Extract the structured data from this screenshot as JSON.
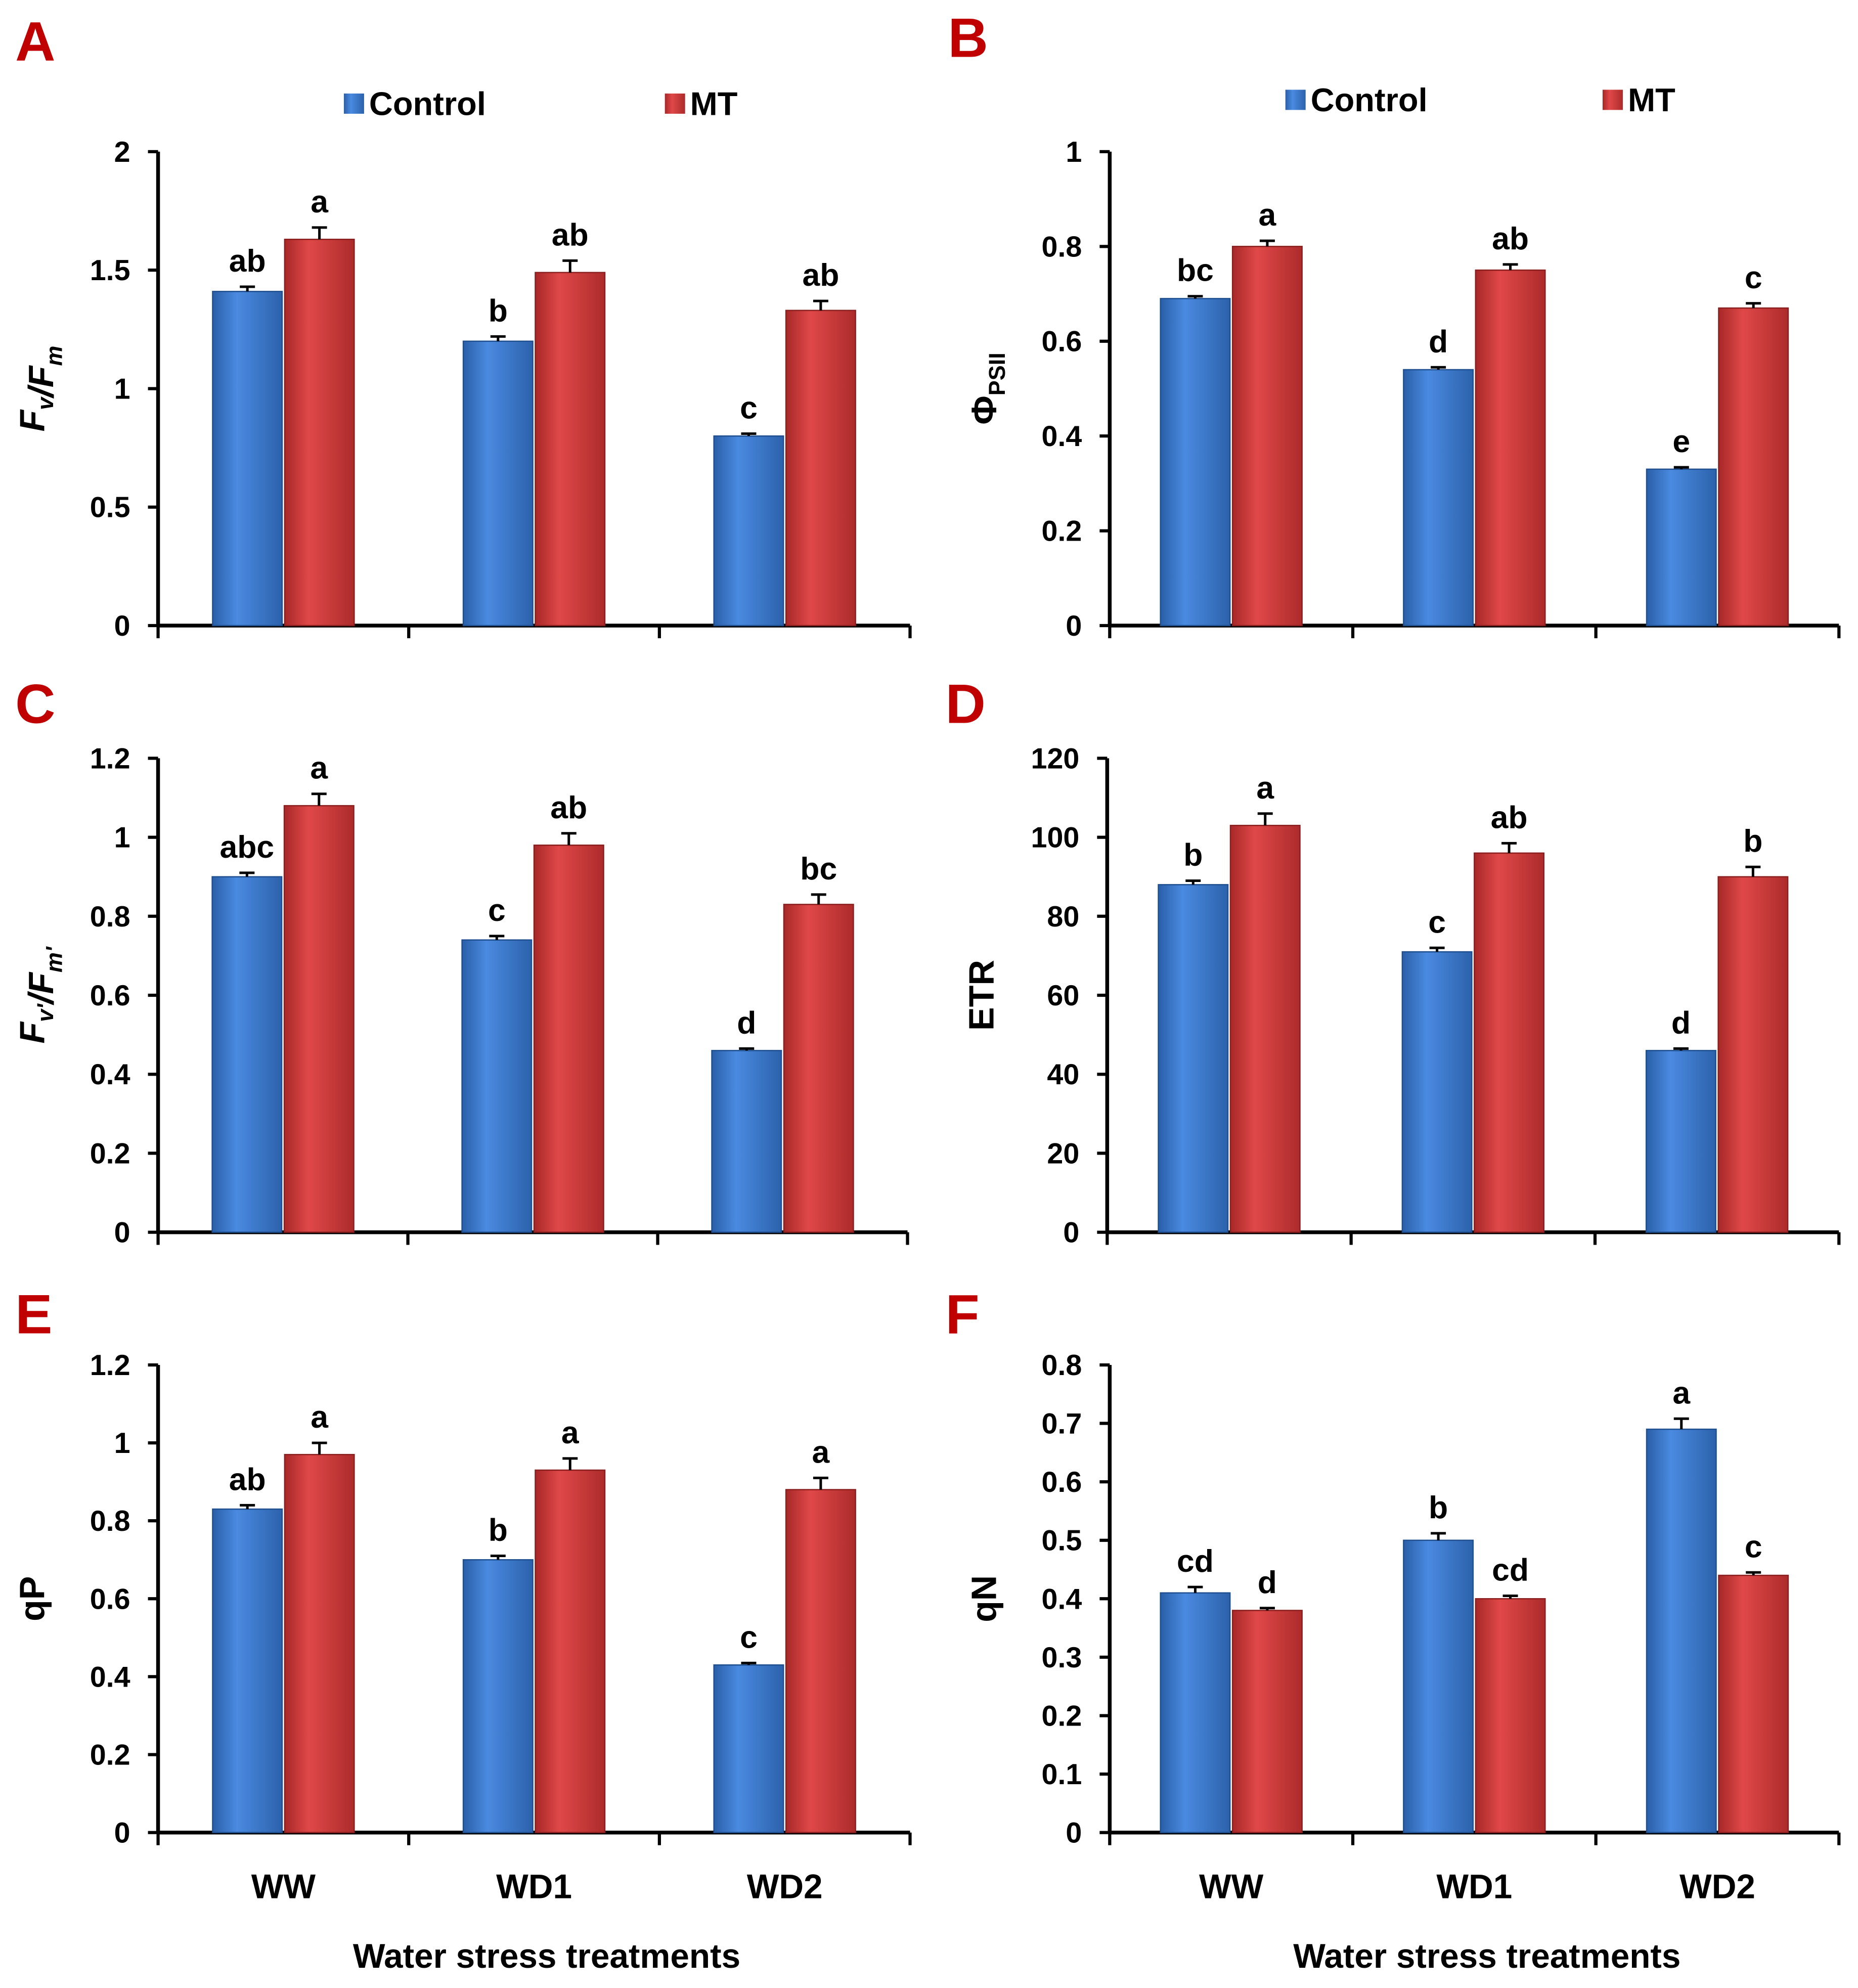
{
  "colors": {
    "control": "#3a78c9",
    "mt": "#d63a3a",
    "panel_letter": "#c00000"
  },
  "legend": {
    "control": "Control",
    "mt": "MT"
  },
  "xlabel": "Water stress treatments",
  "chart_data": [
    {
      "panel": "A",
      "type": "bar",
      "ylabel_parts": [
        [
          "F",
          "v",
          true
        ],
        [
          "/",
          null,
          true
        ],
        [
          "F",
          "m",
          true
        ]
      ],
      "ylim": [
        0,
        2
      ],
      "yticks": [
        "0",
        "0.5",
        "1",
        "1.5",
        "2"
      ],
      "ytick_values": [
        0,
        0.5,
        1,
        1.5,
        2
      ],
      "categories": [
        "WW",
        "WD1",
        "WD2"
      ],
      "series": [
        {
          "name": "Control",
          "values": [
            1.41,
            1.2,
            0.8
          ],
          "errors": [
            0.02,
            0.02,
            0.01
          ],
          "letters": [
            "ab",
            "b",
            "c"
          ]
        },
        {
          "name": "MT",
          "values": [
            1.63,
            1.49,
            1.33
          ],
          "errors": [
            0.05,
            0.05,
            0.04
          ],
          "letters": [
            "a",
            "ab",
            "ab"
          ]
        }
      ]
    },
    {
      "panel": "B",
      "type": "bar",
      "ylabel_parts": [
        [
          "Φ",
          "PSII",
          false
        ]
      ],
      "ylim": [
        0,
        1
      ],
      "yticks": [
        "0",
        "0.2",
        "0.4",
        "0.6",
        "0.8",
        "1"
      ],
      "ytick_values": [
        0,
        0.2,
        0.4,
        0.6,
        0.8,
        1
      ],
      "categories": [
        "WW",
        "WD1",
        "WD2"
      ],
      "series": [
        {
          "name": "Control",
          "values": [
            0.69,
            0.54,
            0.33
          ],
          "errors": [
            0.005,
            0.005,
            0.004
          ],
          "letters": [
            "bc",
            "d",
            "e"
          ]
        },
        {
          "name": "MT",
          "values": [
            0.8,
            0.75,
            0.67
          ],
          "errors": [
            0.012,
            0.012,
            0.01
          ],
          "letters": [
            "a",
            "ab",
            "c"
          ]
        }
      ]
    },
    {
      "panel": "C",
      "type": "bar",
      "ylabel_parts": [
        [
          "F",
          "v'",
          true
        ],
        [
          "/",
          null,
          true
        ],
        [
          "F",
          "m'",
          true
        ]
      ],
      "ylim": [
        0,
        1.2
      ],
      "yticks": [
        "0",
        "0.2",
        "0.4",
        "0.6",
        "0.8",
        "1",
        "1.2"
      ],
      "ytick_values": [
        0,
        0.2,
        0.4,
        0.6,
        0.8,
        1,
        1.2
      ],
      "categories": [
        "WW",
        "WD1",
        "WD2"
      ],
      "series": [
        {
          "name": "Control",
          "values": [
            0.9,
            0.74,
            0.46
          ],
          "errors": [
            0.01,
            0.01,
            0.005
          ],
          "letters": [
            "abc",
            "c",
            "d"
          ]
        },
        {
          "name": "MT",
          "values": [
            1.08,
            0.98,
            0.83
          ],
          "errors": [
            0.03,
            0.03,
            0.025
          ],
          "letters": [
            "a",
            "ab",
            "bc"
          ]
        }
      ]
    },
    {
      "panel": "D",
      "type": "bar",
      "ylabel_parts": [
        [
          "ETR",
          null,
          false
        ]
      ],
      "ylim": [
        0,
        120
      ],
      "yticks": [
        "0",
        "20",
        "40",
        "60",
        "80",
        "100",
        "120"
      ],
      "ytick_values": [
        0,
        20,
        40,
        60,
        80,
        100,
        120
      ],
      "categories": [
        "WW",
        "WD1",
        "WD2"
      ],
      "series": [
        {
          "name": "Control",
          "values": [
            88,
            71,
            46
          ],
          "errors": [
            1,
            1,
            0.5
          ],
          "letters": [
            "b",
            "c",
            "d"
          ]
        },
        {
          "name": "MT",
          "values": [
            103,
            96,
            90
          ],
          "errors": [
            3,
            2.5,
            2.5
          ],
          "letters": [
            "a",
            "ab",
            "b"
          ]
        }
      ]
    },
    {
      "panel": "E",
      "type": "bar",
      "ylabel_parts": [
        [
          "qP",
          null,
          false
        ]
      ],
      "ylim": [
        0,
        1.2
      ],
      "yticks": [
        "0",
        "0.2",
        "0.4",
        "0.6",
        "0.8",
        "1",
        "1.2"
      ],
      "ytick_values": [
        0,
        0.2,
        0.4,
        0.6,
        0.8,
        1,
        1.2
      ],
      "categories": [
        "WW",
        "WD1",
        "WD2"
      ],
      "series": [
        {
          "name": "Control",
          "values": [
            0.83,
            0.7,
            0.43
          ],
          "errors": [
            0.01,
            0.01,
            0.005
          ],
          "letters": [
            "ab",
            "b",
            "c"
          ]
        },
        {
          "name": "MT",
          "values": [
            0.97,
            0.93,
            0.88
          ],
          "errors": [
            0.03,
            0.03,
            0.03
          ],
          "letters": [
            "a",
            "a",
            "a"
          ]
        }
      ]
    },
    {
      "panel": "F",
      "type": "bar",
      "ylabel_parts": [
        [
          "qN",
          null,
          false
        ]
      ],
      "ylim": [
        0,
        0.8
      ],
      "yticks": [
        "0",
        "0.1",
        "0.2",
        "0.3",
        "0.4",
        "0.5",
        "0.6",
        "0.7",
        "0.8"
      ],
      "ytick_values": [
        0,
        0.1,
        0.2,
        0.3,
        0.4,
        0.5,
        0.6,
        0.7,
        0.8
      ],
      "categories": [
        "WW",
        "WD1",
        "WD2"
      ],
      "series": [
        {
          "name": "Control",
          "values": [
            0.41,
            0.5,
            0.69
          ],
          "errors": [
            0.01,
            0.012,
            0.018
          ],
          "letters": [
            "cd",
            "b",
            "a"
          ]
        },
        {
          "name": "MT",
          "values": [
            0.38,
            0.4,
            0.44
          ],
          "errors": [
            0.004,
            0.005,
            0.005
          ],
          "letters": [
            "d",
            "cd",
            "c"
          ]
        }
      ]
    }
  ]
}
